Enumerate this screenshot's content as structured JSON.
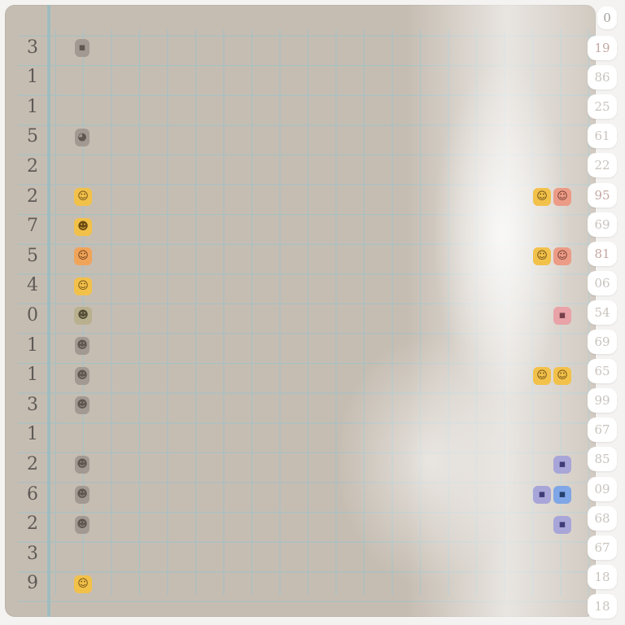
{
  "rows": [
    "3",
    "1",
    "1",
    "5",
    "2",
    "2",
    "7",
    "5",
    "4",
    "0",
    "1",
    "1",
    "3",
    "1",
    "2",
    "6",
    "2",
    "3",
    "9"
  ],
  "top_tab": "0",
  "scores": [
    "19",
    "86",
    "25",
    "61",
    "22",
    "95",
    "69",
    "81",
    "06",
    "54",
    "69",
    "65",
    "99",
    "67",
    "85",
    "09",
    "68",
    "67",
    "18",
    "18"
  ],
  "left_icons": [
    {
      "row": 0,
      "style": "gray",
      "glyph": "▪"
    },
    {
      "row": 3,
      "style": "gray",
      "glyph": "◕"
    },
    {
      "row": 5,
      "style": "yellow",
      "glyph": "☺"
    },
    {
      "row": 6,
      "style": "yellow",
      "glyph": "☻"
    },
    {
      "row": 7,
      "style": "orange",
      "glyph": "☺"
    },
    {
      "row": 8,
      "style": "yellow",
      "glyph": "☺"
    },
    {
      "row": 9,
      "style": "olive",
      "glyph": "☻"
    },
    {
      "row": 10,
      "style": "gray",
      "glyph": "☻"
    },
    {
      "row": 11,
      "style": "gray",
      "glyph": "☻"
    },
    {
      "row": 12,
      "style": "gray",
      "glyph": "☻"
    },
    {
      "row": 14,
      "style": "gray",
      "glyph": "☻"
    },
    {
      "row": 15,
      "style": "gray",
      "glyph": "☻"
    },
    {
      "row": 16,
      "style": "gray",
      "glyph": "☻"
    },
    {
      "row": 18,
      "style": "yellow",
      "glyph": "☺"
    }
  ],
  "right_icons": [
    {
      "row": 5,
      "col": 0,
      "style": "yellow",
      "glyph": "☺"
    },
    {
      "row": 5,
      "col": 1,
      "style": "salmon",
      "glyph": "☺"
    },
    {
      "row": 7,
      "col": 0,
      "style": "yellow",
      "glyph": "☺"
    },
    {
      "row": 7,
      "col": 1,
      "style": "salmon",
      "glyph": "☺"
    },
    {
      "row": 9,
      "col": 1,
      "style": "pink",
      "glyph": "▪"
    },
    {
      "row": 11,
      "col": 0,
      "style": "yellow",
      "glyph": "☺"
    },
    {
      "row": 11,
      "col": 1,
      "style": "yellow",
      "glyph": "☺"
    },
    {
      "row": 14,
      "col": 1,
      "style": "lilac",
      "glyph": "▪"
    },
    {
      "row": 15,
      "col": 0,
      "style": "lilac",
      "glyph": "▪"
    },
    {
      "row": 15,
      "col": 1,
      "style": "blue",
      "glyph": "▪"
    },
    {
      "row": 16,
      "col": 1,
      "style": "lilac",
      "glyph": "▪"
    }
  ]
}
